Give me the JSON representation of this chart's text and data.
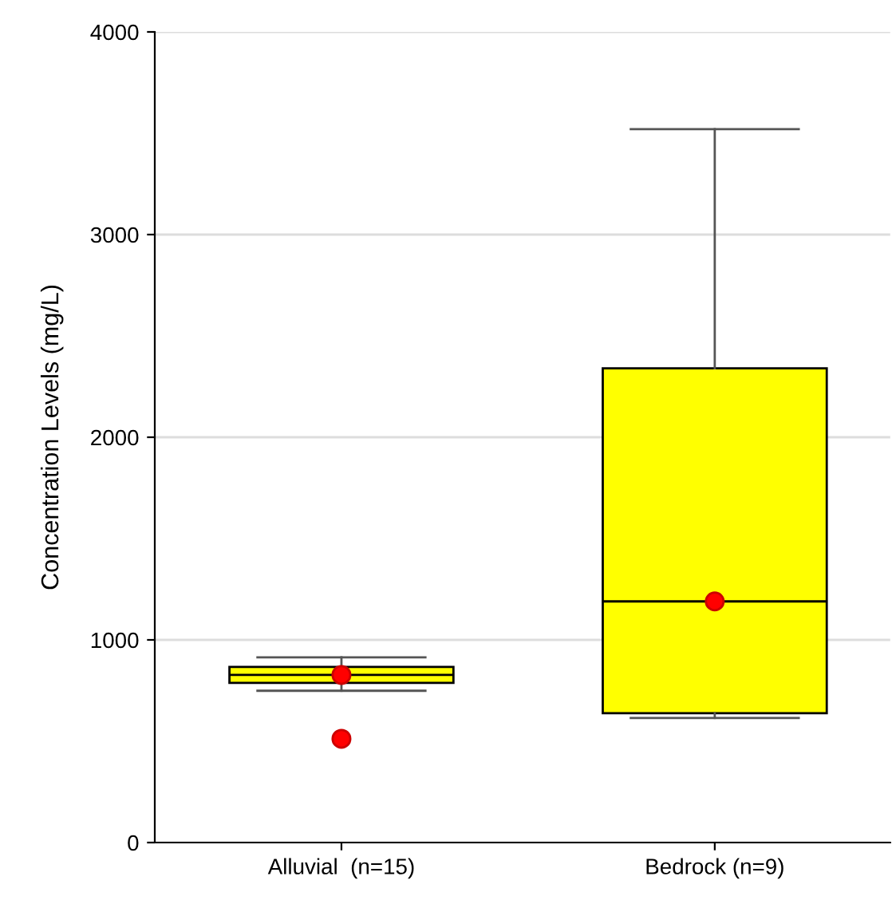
{
  "chart_data": {
    "type": "box",
    "ylabel": "Concentration Levels (mg/L)",
    "categories": [
      "Alluvial  (n=15)",
      "Bedrock (n=9)"
    ],
    "boxes": [
      {
        "low": 749,
        "q1": 788,
        "median": 827,
        "q3": 867,
        "high": 914,
        "mean": 827,
        "outliers": [
          512
        ]
      },
      {
        "low": 615,
        "q1": 638,
        "median": 1190,
        "q3": 2340,
        "high": 3520,
        "mean": 1190
      }
    ],
    "color": "#ffff00",
    "ylim": [
      0,
      4000
    ],
    "yticks": [
      0,
      1000,
      2000,
      3000,
      4000
    ],
    "grid": "y"
  }
}
